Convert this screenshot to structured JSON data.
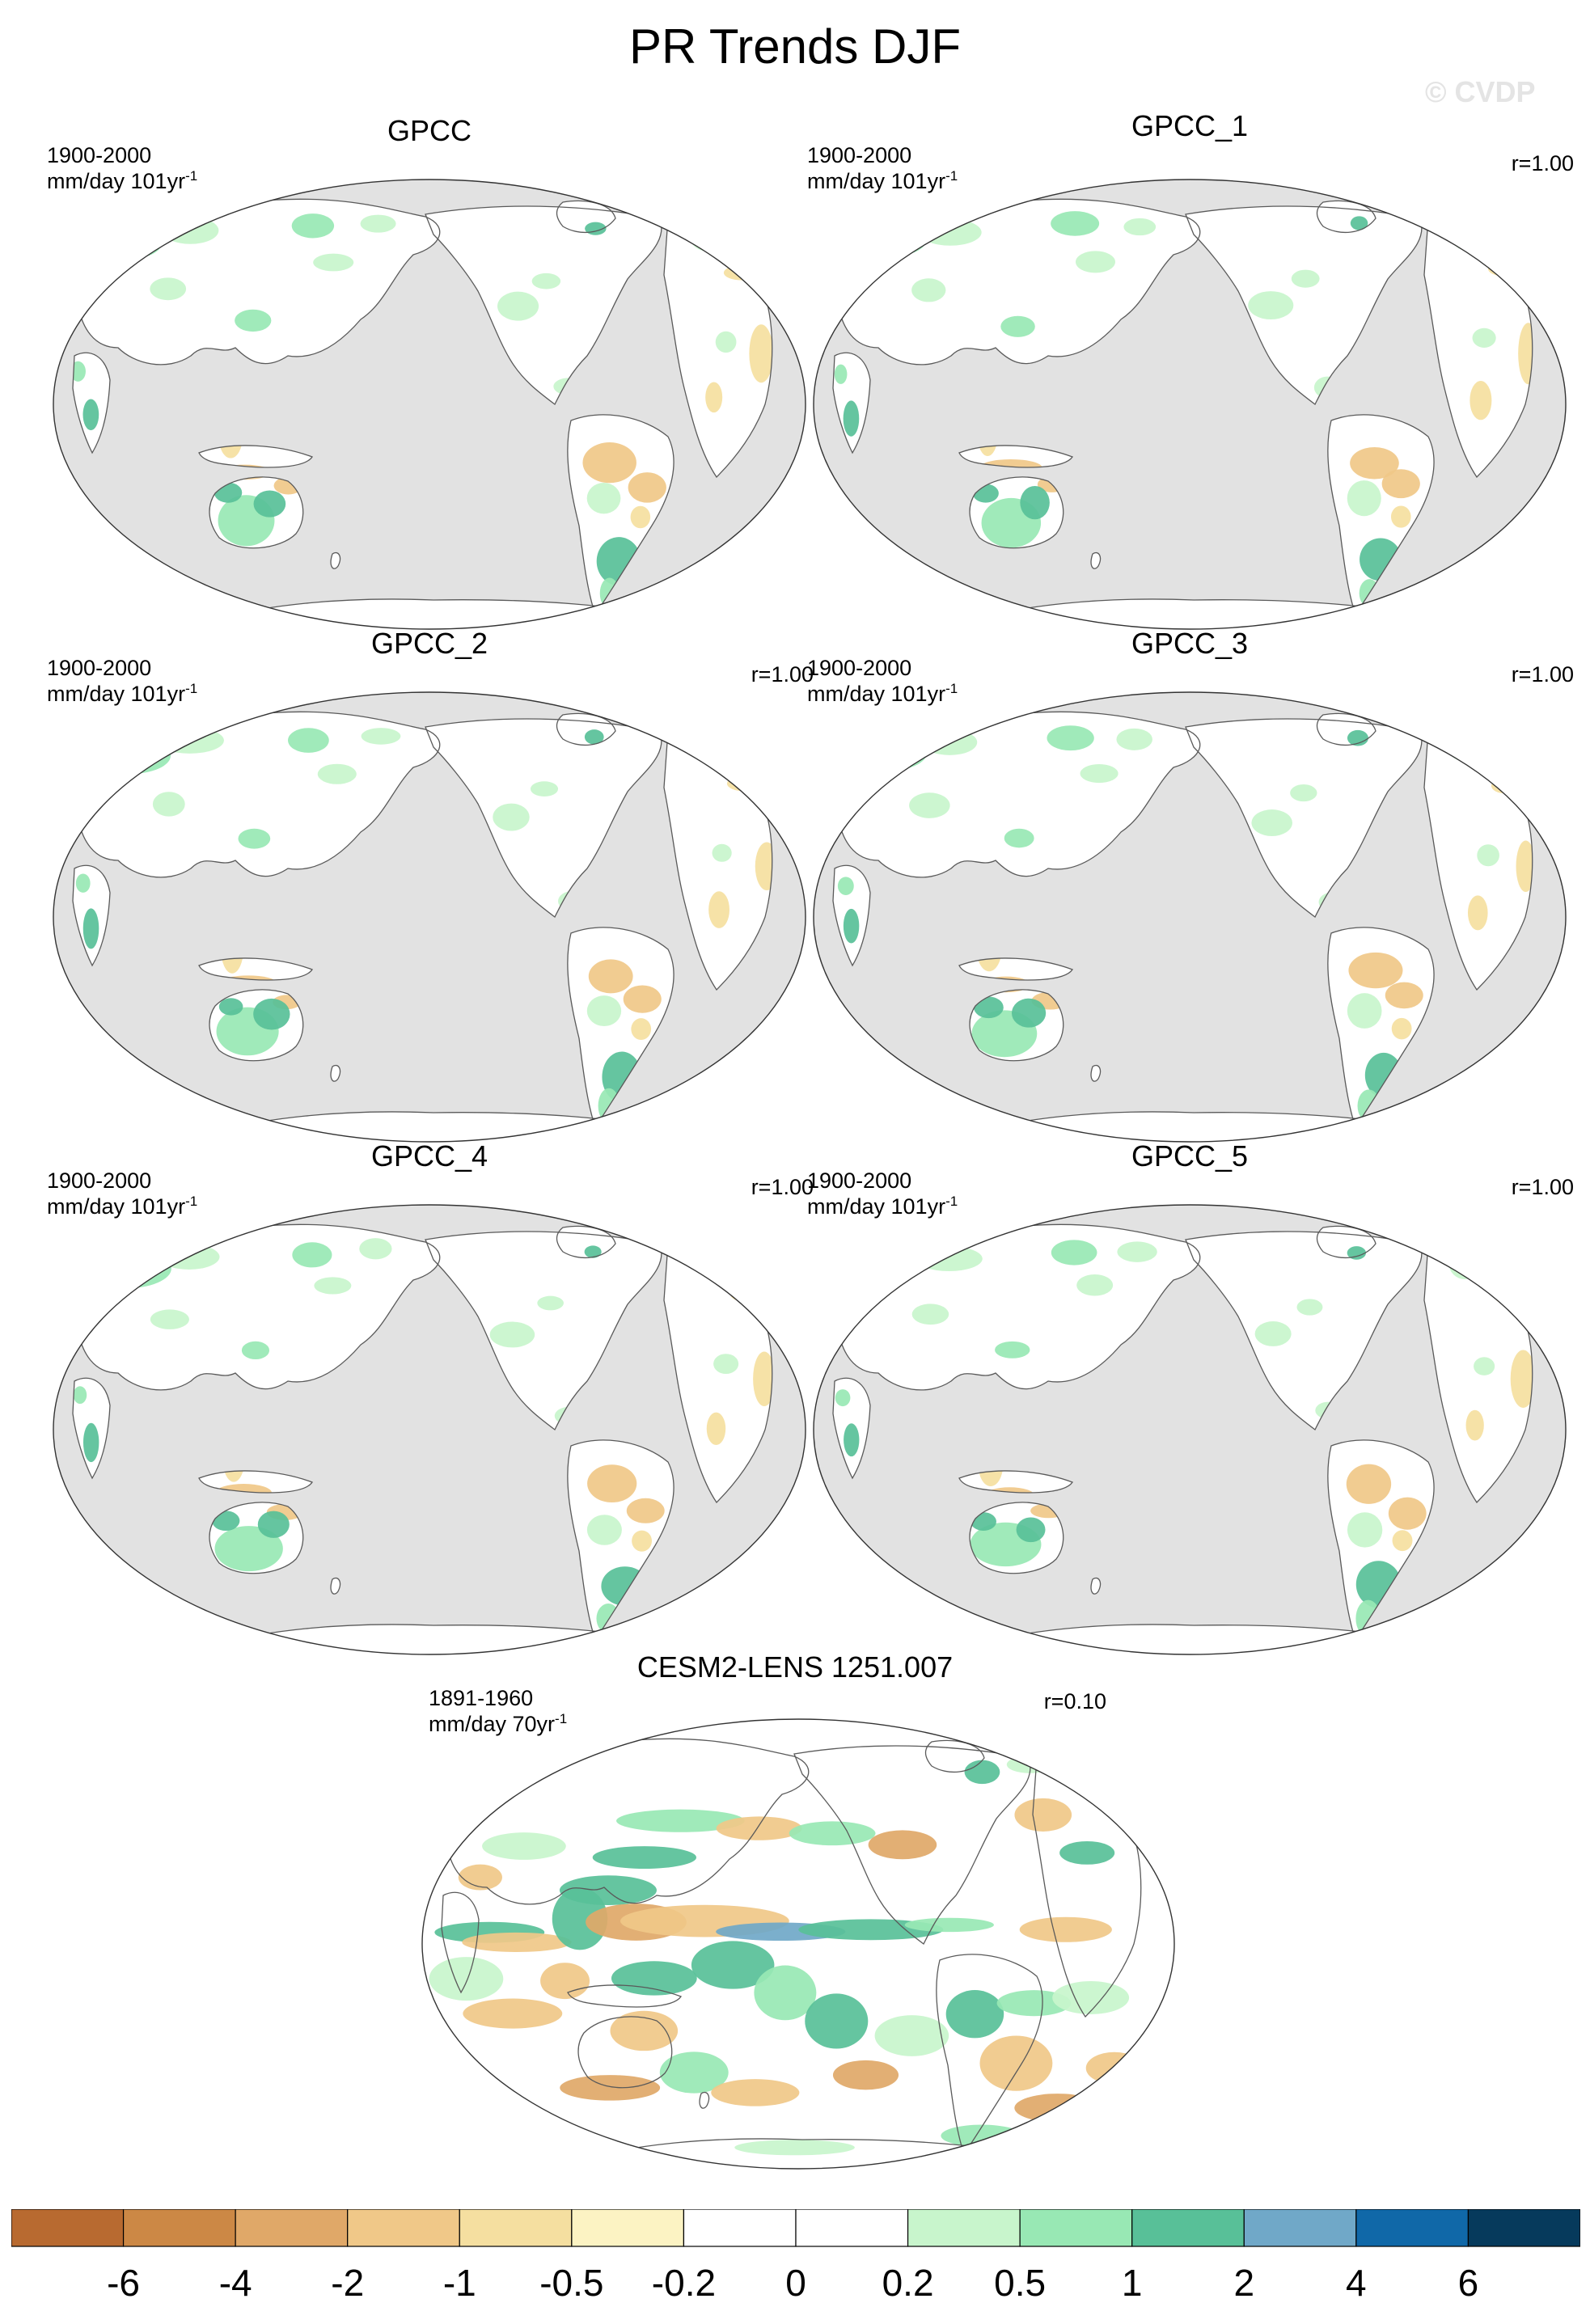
{
  "title": "PR Trends DJF",
  "watermark": "© CVDP",
  "colors": {
    "ocean": "#e2e2e2",
    "land": "#ffffff",
    "coast": "#5a5a5a"
  },
  "panels": [
    {
      "id": "gpcc",
      "name": "GPCC",
      "period": "1900-2000",
      "units": "mm/day 101yr",
      "units_exp": "-1",
      "r": "",
      "source": "obs"
    },
    {
      "id": "gpcc1",
      "name": "GPCC_1",
      "period": "1900-2000",
      "units": "mm/day 101yr",
      "units_exp": "-1",
      "r": "r=1.00",
      "source": "obs"
    },
    {
      "id": "gpcc2",
      "name": "GPCC_2",
      "period": "1900-2000",
      "units": "mm/day 101yr",
      "units_exp": "-1",
      "r": "r=1.00",
      "source": "obs"
    },
    {
      "id": "gpcc3",
      "name": "GPCC_3",
      "period": "1900-2000",
      "units": "mm/day 101yr",
      "units_exp": "-1",
      "r": "r=1.00",
      "source": "obs"
    },
    {
      "id": "gpcc4",
      "name": "GPCC_4",
      "period": "1900-2000",
      "units": "mm/day 101yr",
      "units_exp": "-1",
      "r": "r=1.00",
      "source": "obs"
    },
    {
      "id": "gpcc5",
      "name": "GPCC_5",
      "period": "1900-2000",
      "units": "mm/day 101yr",
      "units_exp": "-1",
      "r": "r=1.00",
      "source": "obs"
    },
    {
      "id": "cesm2",
      "name": "CESM2-LENS 1251.007",
      "period": "1891-1960",
      "units": "mm/day 70yr",
      "units_exp": "-1",
      "r": "r=0.10",
      "source": "model"
    }
  ],
  "colorbar": {
    "colors": [
      "#b86a30",
      "#cc8845",
      "#e0a868",
      "#f0c888",
      "#f5dfa0",
      "#fcf3c3",
      "#ffffff",
      "#ffffff",
      "#c8f5cc",
      "#98e8b4",
      "#58c098",
      "#70a8c8",
      "#1068a8",
      "#063a5c"
    ],
    "labels": [
      "-6",
      "-4",
      "-2",
      "-1",
      "-0.5",
      "-0.2",
      "0",
      "0.2",
      "0.5",
      "1",
      "2",
      "4",
      "6"
    ]
  }
}
